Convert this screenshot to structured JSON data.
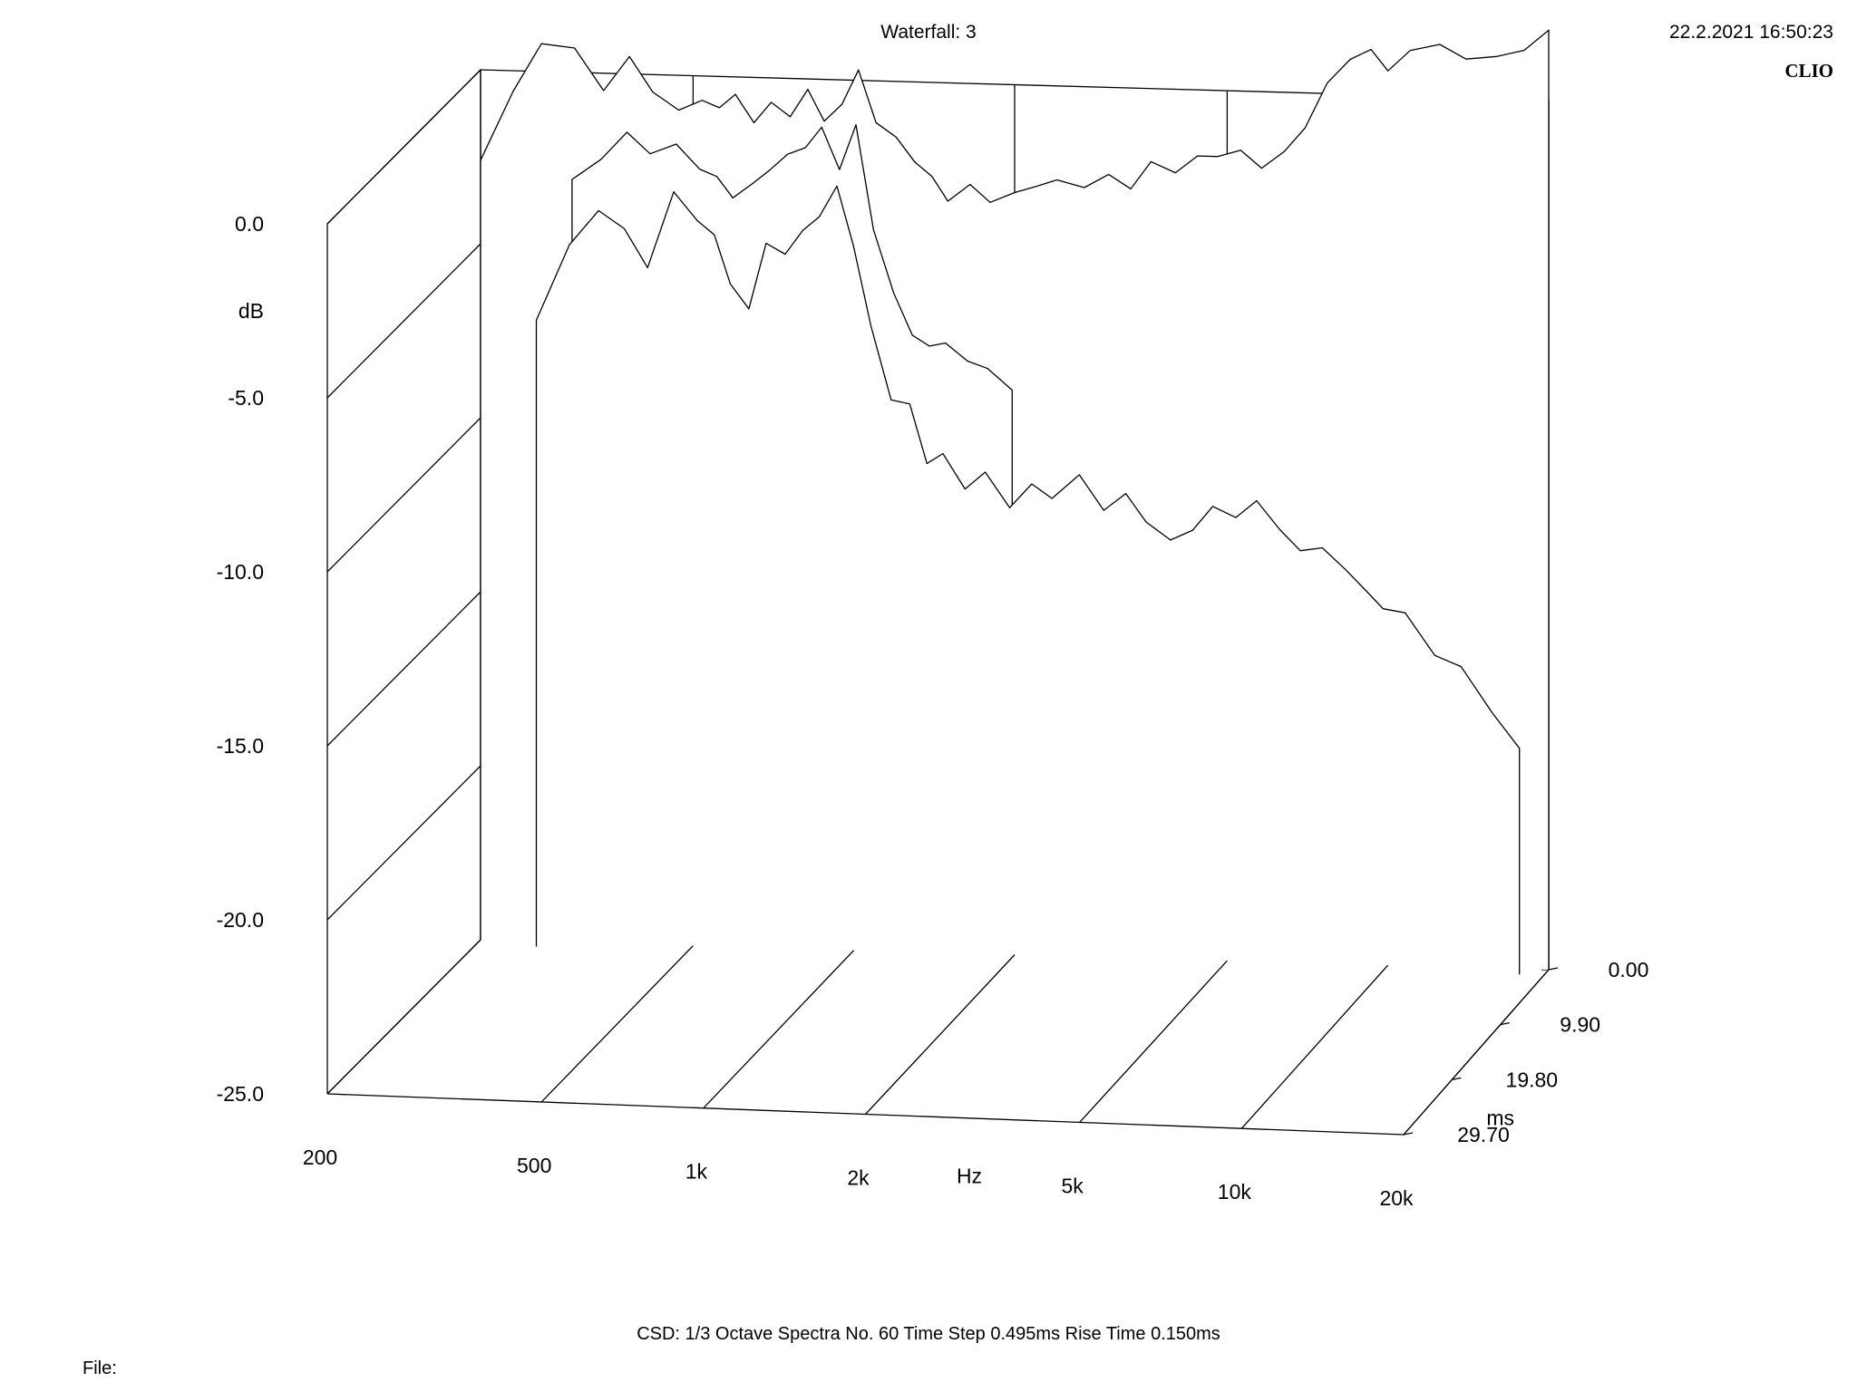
{
  "header": {
    "title": "Waterfall: 3",
    "timestamp": "22.2.2021 16:50:23",
    "brand": "CLIO"
  },
  "footer": {
    "settings": "CSD:    1/3 Octave    Spectra No. 60    Time Step 0.495ms    Rise Time 0.150ms",
    "file_label": "File:"
  },
  "chart_data": {
    "type": "waterfall",
    "title": "Waterfall: 3",
    "xlabel": "Hz",
    "ylabel": "dB",
    "zlabel": "ms",
    "x_scale": "log",
    "xlim": [
      200,
      20000
    ],
    "ylim": [
      -25,
      0
    ],
    "zlim": [
      0,
      29.7
    ],
    "x_ticks": [
      {
        "value": 200,
        "label": "200"
      },
      {
        "value": 500,
        "label": "500"
      },
      {
        "value": 1000,
        "label": "1k"
      },
      {
        "value": 2000,
        "label": "2k"
      },
      {
        "value": 5000,
        "label": "5k"
      },
      {
        "value": 10000,
        "label": "10k"
      },
      {
        "value": 20000,
        "label": "20k"
      }
    ],
    "y_ticks": [
      {
        "value": 0,
        "label": "0.0"
      },
      {
        "value": -5,
        "label": "-5.0"
      },
      {
        "value": -10,
        "label": "-10.0"
      },
      {
        "value": -15,
        "label": "-15.0"
      },
      {
        "value": -20,
        "label": "-20.0"
      },
      {
        "value": -25,
        "label": "-25.0"
      }
    ],
    "z_ticks": [
      {
        "value": 0,
        "label": "0.00"
      },
      {
        "value": 9.9,
        "label": "9.90"
      },
      {
        "value": 19.8,
        "label": "19.80"
      },
      {
        "value": 29.7,
        "label": "29.70"
      }
    ],
    "spectra_count": 60,
    "time_step_ms": 0.495,
    "rise_time_ms": 0.15,
    "smoothing": "1/3 Octave",
    "color": "#000000",
    "slices": [
      {
        "time_ms": 0.0,
        "freq": [
          200,
          230,
          260,
          300,
          340,
          380,
          420,
          470,
          520,
          560,
          600,
          650,
          700,
          760,
          820,
          880,
          950,
          1020,
          1100,
          1200,
          1300,
          1400,
          1500,
          1650,
          1800,
          2000,
          2200,
          2400,
          2700,
          3000,
          3300,
          3600,
          4000,
          4400,
          4800,
          5300,
          5800,
          6400,
          7000,
          7700,
          8500,
          9300,
          10000,
          11000,
          12500,
          14000,
          16000,
          18000,
          20000
        ],
        "db": [
          -2.6,
          -0.6,
          0.8,
          0.7,
          -0.5,
          0.5,
          -0.5,
          -1.0,
          -0.7,
          -0.9,
          -0.5,
          -1.3,
          -0.7,
          -1.1,
          -0.3,
          -1.2,
          -0.7,
          0.3,
          -1.2,
          -1.6,
          -2.3,
          -2.7,
          -3.4,
          -2.9,
          -3.4,
          -3.1,
          -2.9,
          -2.7,
          -2.9,
          -2.5,
          -2.9,
          -2.1,
          -2.4,
          -1.9,
          -1.9,
          -1.7,
          -2.2,
          -1.7,
          -1.0,
          0.3,
          1.0,
          1.3,
          0.7,
          1.3,
          1.5,
          1.1,
          1.2,
          1.4,
          2.0
        ]
      },
      {
        "time_ms": 0.495,
        "freq": [
          300,
          340,
          380,
          420,
          470,
          520,
          560,
          600,
          650,
          700,
          760,
          820,
          880,
          950,
          1020,
          1100,
          1200,
          1300,
          1400,
          1500,
          1650,
          1800,
          2000
        ],
        "db": [
          -3.0,
          -2.4,
          -1.6,
          -2.2,
          -1.9,
          -2.6,
          -2.8,
          -3.4,
          -3.0,
          -2.6,
          -2.1,
          -1.9,
          -1.3,
          -2.5,
          -1.2,
          -4.2,
          -6.0,
          -7.2,
          -7.5,
          -7.4,
          -7.9,
          -8.1,
          -8.7
        ]
      },
      {
        "time_ms": 0.99,
        "freq": [
          260,
          300,
          340,
          380,
          420,
          470,
          520,
          560,
          600,
          650,
          700,
          760,
          820,
          880,
          950,
          1020,
          1100,
          1200,
          1300,
          1400,
          1500,
          1650,
          1800,
          2000,
          2200,
          2400,
          2700,
          3000,
          3300,
          3600,
          4000,
          4400,
          4800,
          5300,
          5800,
          6400,
          7000,
          7700,
          8500,
          9300,
          10000,
          11000,
          12500,
          14000,
          16000,
          18000
        ],
        "db": [
          -7.0,
          -4.8,
          -3.8,
          -4.3,
          -5.4,
          -3.2,
          -4.0,
          -4.4,
          -5.8,
          -6.5,
          -4.6,
          -4.9,
          -4.2,
          -3.8,
          -2.9,
          -4.6,
          -6.9,
          -9.0,
          -9.1,
          -10.8,
          -10.5,
          -11.5,
          -11.0,
          -12.0,
          -11.3,
          -11.7,
          -11.0,
          -12.0,
          -11.5,
          -12.3,
          -12.8,
          -12.5,
          -11.8,
          -12.1,
          -11.6,
          -12.4,
          -13.0,
          -12.9,
          -13.5,
          -14.1,
          -14.6,
          -14.7,
          -15.9,
          -16.2,
          -17.5,
          -18.5
        ]
      }
    ]
  }
}
